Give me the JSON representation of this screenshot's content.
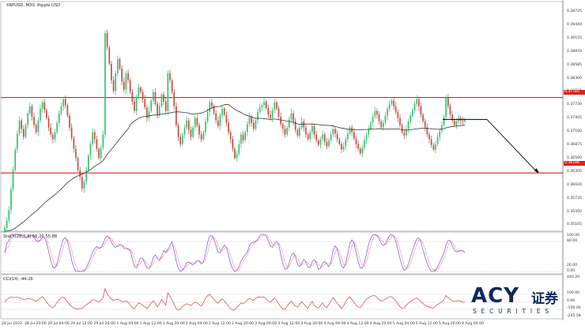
{
  "chart": {
    "title": "XRPUSD, M30: Ripple USD",
    "stoch_label": "Stoch(28,3,3) 56.20 55.88",
    "cci_label": "CCI(14) -44.26",
    "price_axis": [
      "0.39725",
      "0.39440",
      "0.39155",
      "0.38870",
      "0.38585",
      "0.38300",
      "0.38015",
      "0.37730",
      "0.37445",
      "0.37160",
      "0.36875",
      "0.36590",
      "0.36305",
      "0.36020",
      "0.35735",
      "0.35450",
      "0.35165"
    ],
    "resistance_tag": "0.37785",
    "support_tag": "0.36186",
    "stoch_axis": [
      "100.00",
      "80.00",
      "20.00",
      "0.00"
    ],
    "cci_axis": [
      "440.20",
      "100.00",
      "0.00",
      "-100.00",
      "-245.58"
    ],
    "time_axis": [
      "28 Jul 2022",
      "28 Jul 20:00",
      "29 Jul 04:00",
      "29 Jul 12:00",
      "29 Jul 20:00",
      "1 Aug 04:00",
      "1 Aug 12:00",
      "1 Aug 20:00",
      "2 Aug 04:00",
      "2 Aug 12:00",
      "2 Aug 20:00",
      "3 Aug 04:00",
      "3 Aug 12:00",
      "3 Aug 20:00",
      "4 Aug 04:00",
      "4 Aug 12:00",
      "4 Aug 20:00",
      "5 Aug 04:00",
      "5 Aug 12:00",
      "5 Aug 20:00",
      "8 Aug 04:00"
    ],
    "colors": {
      "bull": "#2fbf71",
      "bear": "#c4473a",
      "level": "#e02020",
      "ma": "#333333",
      "stoch_main": "#7b4fc9",
      "stoch_signal": "#e0306a",
      "cci": "#d04040"
    }
  },
  "chart_data": {
    "type": "candlestick",
    "ylim": [
      0.3495,
      0.3982
    ],
    "resistance": 0.37785,
    "support": 0.36186,
    "closes": [
      0.3502,
      0.3518,
      0.354,
      0.3585,
      0.3625,
      0.3668,
      0.3702,
      0.373,
      0.3712,
      0.3695,
      0.372,
      0.3745,
      0.376,
      0.3738,
      0.372,
      0.3705,
      0.373,
      0.3755,
      0.3768,
      0.3752,
      0.3735,
      0.3715,
      0.37,
      0.369,
      0.3705,
      0.3725,
      0.3745,
      0.376,
      0.3775,
      0.3762,
      0.374,
      0.3715,
      0.3692,
      0.367,
      0.365,
      0.3625,
      0.361,
      0.3585,
      0.36,
      0.3625,
      0.3655,
      0.368,
      0.3705,
      0.369,
      0.367,
      0.365,
      0.3672,
      0.37,
      0.3915,
      0.3885,
      0.385,
      0.3815,
      0.3792,
      0.383,
      0.386,
      0.384,
      0.3812,
      0.3795,
      0.383,
      0.3815,
      0.379,
      0.377,
      0.375,
      0.378,
      0.38,
      0.379,
      0.3775,
      0.3758,
      0.3735,
      0.375,
      0.3772,
      0.379,
      0.3765,
      0.3742,
      0.376,
      0.3785,
      0.377,
      0.375,
      0.383,
      0.3815,
      0.379,
      0.376,
      0.372,
      0.3695,
      0.368,
      0.37,
      0.3715,
      0.373,
      0.371,
      0.3695,
      0.3715,
      0.3735,
      0.372,
      0.37,
      0.369,
      0.3705,
      0.3728,
      0.3748,
      0.3768,
      0.376,
      0.3745,
      0.373,
      0.3718,
      0.374,
      0.3755,
      0.3742,
      0.3725,
      0.3705,
      0.369,
      0.367,
      0.365,
      0.366,
      0.368,
      0.37,
      0.3688,
      0.3705,
      0.3722,
      0.3738,
      0.3725,
      0.3712,
      0.373,
      0.3748,
      0.3758,
      0.3762,
      0.377,
      0.3756,
      0.3742,
      0.3735,
      0.3752,
      0.3768,
      0.3755,
      0.3738,
      0.3722,
      0.3712,
      0.37,
      0.3715,
      0.3732,
      0.3745,
      0.3728,
      0.371,
      0.3698,
      0.3715,
      0.3728,
      0.3715,
      0.37,
      0.369,
      0.3705,
      0.3718,
      0.37,
      0.3688,
      0.3678,
      0.369,
      0.37,
      0.3685,
      0.3675,
      0.3688,
      0.37,
      0.3712,
      0.3702,
      0.369,
      0.368,
      0.3668,
      0.3675,
      0.369,
      0.3702,
      0.3715,
      0.3705,
      0.3692,
      0.368,
      0.367,
      0.366,
      0.3672,
      0.3688,
      0.37,
      0.3712,
      0.3725,
      0.3738,
      0.375,
      0.3742,
      0.3728,
      0.3715,
      0.3725,
      0.374,
      0.3755,
      0.3765,
      0.3772,
      0.376,
      0.3748,
      0.3735,
      0.372,
      0.3705,
      0.3698,
      0.3712,
      0.3728,
      0.374,
      0.3752,
      0.3765,
      0.3775,
      0.376,
      0.3742,
      0.3728,
      0.3715,
      0.37,
      0.369,
      0.3678,
      0.3668,
      0.368,
      0.3695,
      0.3708,
      0.372,
      0.3738,
      0.3778,
      0.376,
      0.3742,
      0.373,
      0.372,
      0.3728,
      0.3735,
      0.373,
      0.3728,
      0.3732
    ]
  }
}
